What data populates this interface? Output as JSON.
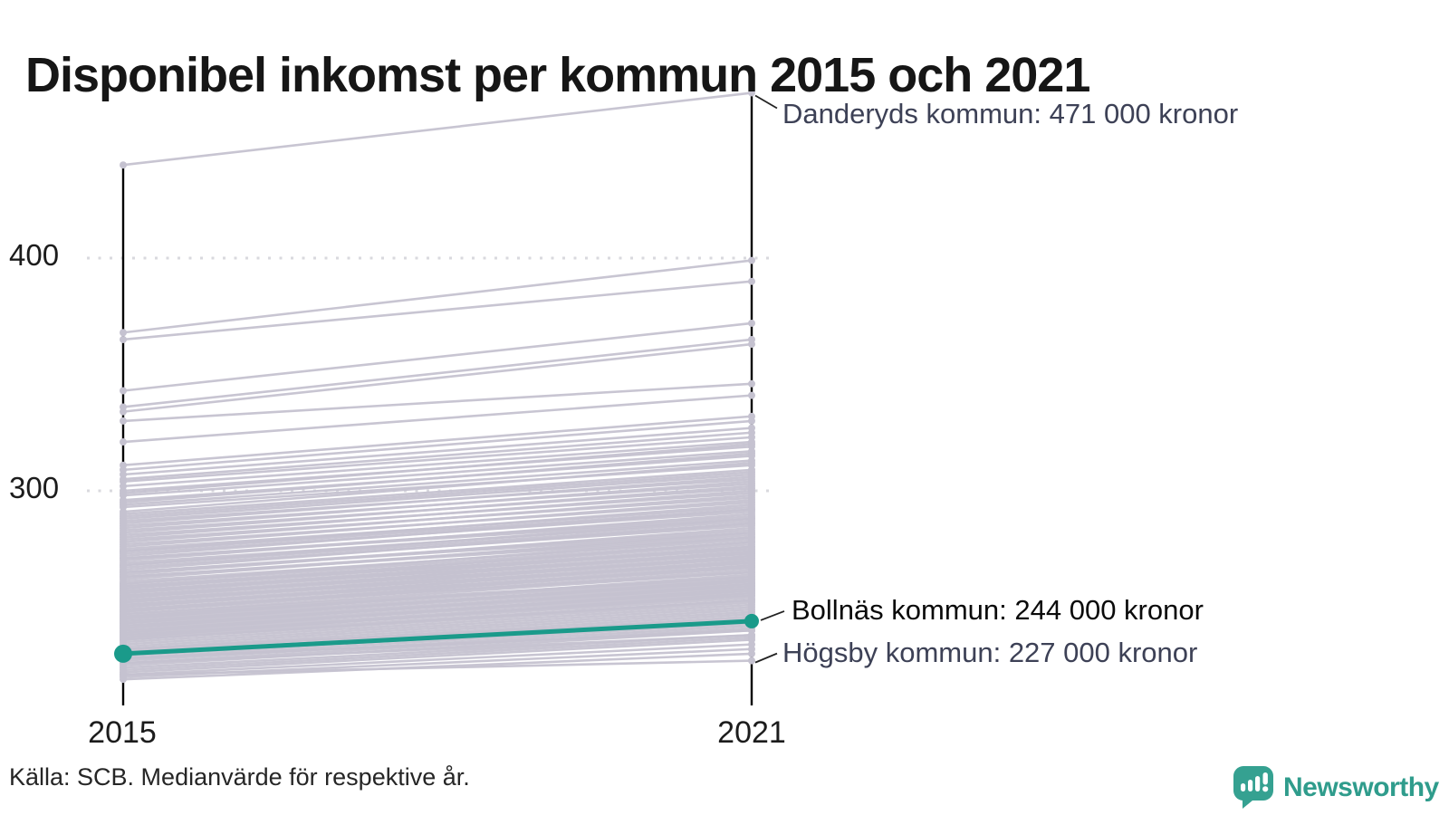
{
  "title": "Disponibel inkomst per kommun 2015 och 2021",
  "source": "Källa: SCB. Medianvärde för respektive år.",
  "logo": {
    "brand": "Newsworthy"
  },
  "colors": {
    "highlight": "#1a9a8a",
    "background_lines": "#c5c2d0",
    "axis": "#000000",
    "gridline": "#d9d9de",
    "annotation_text": "#3d4156",
    "brand_teal": "#2f9c8c"
  },
  "chart_data": {
    "type": "line",
    "subtype": "slopegraph",
    "x_categories": [
      "2015",
      "2021"
    ],
    "y_ticks": [
      400,
      300
    ],
    "y_tick_labels": [
      "400",
      "300"
    ],
    "ylim": [
      215,
      480
    ],
    "grid": "dotted horizontal at ticks",
    "highlight": {
      "name": "Bollnäs kommun",
      "label": "Bollnäs kommun: 244 000 kronor",
      "values_2015_2021": [
        230,
        244
      ]
    },
    "annotations": [
      {
        "name": "Danderyds kommun",
        "label": "Danderyds kommun: 471 000 kronor",
        "values_2015_2021": [
          440,
          471
        ]
      },
      {
        "name": "Högsby kommun",
        "label": "Högsby kommun: 227 000 kronor",
        "values_2015_2021": [
          221,
          227
        ]
      }
    ],
    "background_lines_2015_2021": [
      [
        368,
        399
      ],
      [
        365,
        390
      ],
      [
        343,
        372
      ],
      [
        336,
        365
      ],
      [
        334,
        363
      ],
      [
        330,
        346
      ],
      [
        321,
        341
      ],
      [
        311,
        332
      ],
      [
        309,
        330
      ],
      [
        307,
        327
      ],
      [
        305,
        325
      ],
      [
        304,
        323
      ],
      [
        302,
        321
      ],
      [
        300,
        319
      ],
      [
        299,
        320
      ],
      [
        298,
        317
      ],
      [
        296,
        315
      ],
      [
        295,
        316
      ],
      [
        294,
        313
      ],
      [
        293,
        311
      ],
      [
        291,
        312
      ],
      [
        290,
        309
      ],
      [
        289,
        308
      ],
      [
        288,
        307
      ],
      [
        287,
        305
      ],
      [
        286,
        306
      ],
      [
        285,
        303
      ],
      [
        284,
        304
      ],
      [
        283,
        301
      ],
      [
        282,
        302
      ],
      [
        281,
        299
      ],
      [
        280,
        300
      ],
      [
        279,
        297
      ],
      [
        278,
        298
      ],
      [
        277,
        295
      ],
      [
        276,
        296
      ],
      [
        275,
        293
      ],
      [
        274,
        294
      ],
      [
        274,
        292
      ],
      [
        273,
        291
      ],
      [
        272,
        292
      ],
      [
        271,
        289
      ],
      [
        270,
        290
      ],
      [
        269,
        287
      ],
      [
        268,
        288
      ],
      [
        267,
        285
      ],
      [
        266,
        286
      ],
      [
        265,
        283
      ],
      [
        264,
        284
      ],
      [
        263,
        281
      ],
      [
        262,
        282
      ],
      [
        271,
        288
      ],
      [
        268,
        286
      ],
      [
        265,
        282
      ],
      [
        263,
        280
      ],
      [
        261,
        279
      ],
      [
        260,
        280
      ],
      [
        259,
        277
      ],
      [
        258,
        278
      ],
      [
        257,
        275
      ],
      [
        256,
        276
      ],
      [
        255,
        273
      ],
      [
        254,
        274
      ],
      [
        253,
        271
      ],
      [
        252,
        272
      ],
      [
        251,
        269
      ],
      [
        250,
        270
      ],
      [
        249,
        267
      ],
      [
        248,
        268
      ],
      [
        260,
        278
      ],
      [
        258,
        276
      ],
      [
        256,
        274
      ],
      [
        254,
        272
      ],
      [
        252,
        270
      ],
      [
        250,
        268
      ],
      [
        248,
        266
      ],
      [
        259,
        275
      ],
      [
        257,
        273
      ],
      [
        255,
        271
      ],
      [
        253,
        269
      ],
      [
        251,
        267
      ],
      [
        249,
        265
      ],
      [
        247,
        265
      ],
      [
        246,
        263
      ],
      [
        245,
        264
      ],
      [
        244,
        261
      ],
      [
        243,
        262
      ],
      [
        242,
        259
      ],
      [
        241,
        260
      ],
      [
        240,
        257
      ],
      [
        239,
        258
      ],
      [
        238,
        255
      ],
      [
        237,
        256
      ],
      [
        236,
        253
      ],
      [
        246,
        262
      ],
      [
        244,
        260
      ],
      [
        242,
        258
      ],
      [
        240,
        256
      ],
      [
        238,
        254
      ],
      [
        236,
        252
      ],
      [
        247,
        263
      ],
      [
        245,
        261
      ],
      [
        243,
        259
      ],
      [
        241,
        257
      ],
      [
        239,
        255
      ],
      [
        237,
        253
      ],
      [
        235,
        251
      ],
      [
        234,
        250
      ],
      [
        233,
        249
      ],
      [
        232,
        248
      ],
      [
        231,
        247
      ],
      [
        230,
        246
      ],
      [
        229,
        244
      ],
      [
        228,
        243
      ],
      [
        227,
        242
      ],
      [
        226,
        241
      ],
      [
        225,
        240
      ],
      [
        224,
        238
      ],
      [
        223,
        237
      ],
      [
        222,
        236
      ],
      [
        221,
        234
      ],
      [
        220,
        232
      ],
      [
        219,
        230
      ],
      [
        228,
        240
      ],
      [
        232,
        245
      ],
      [
        226,
        238
      ]
    ]
  }
}
